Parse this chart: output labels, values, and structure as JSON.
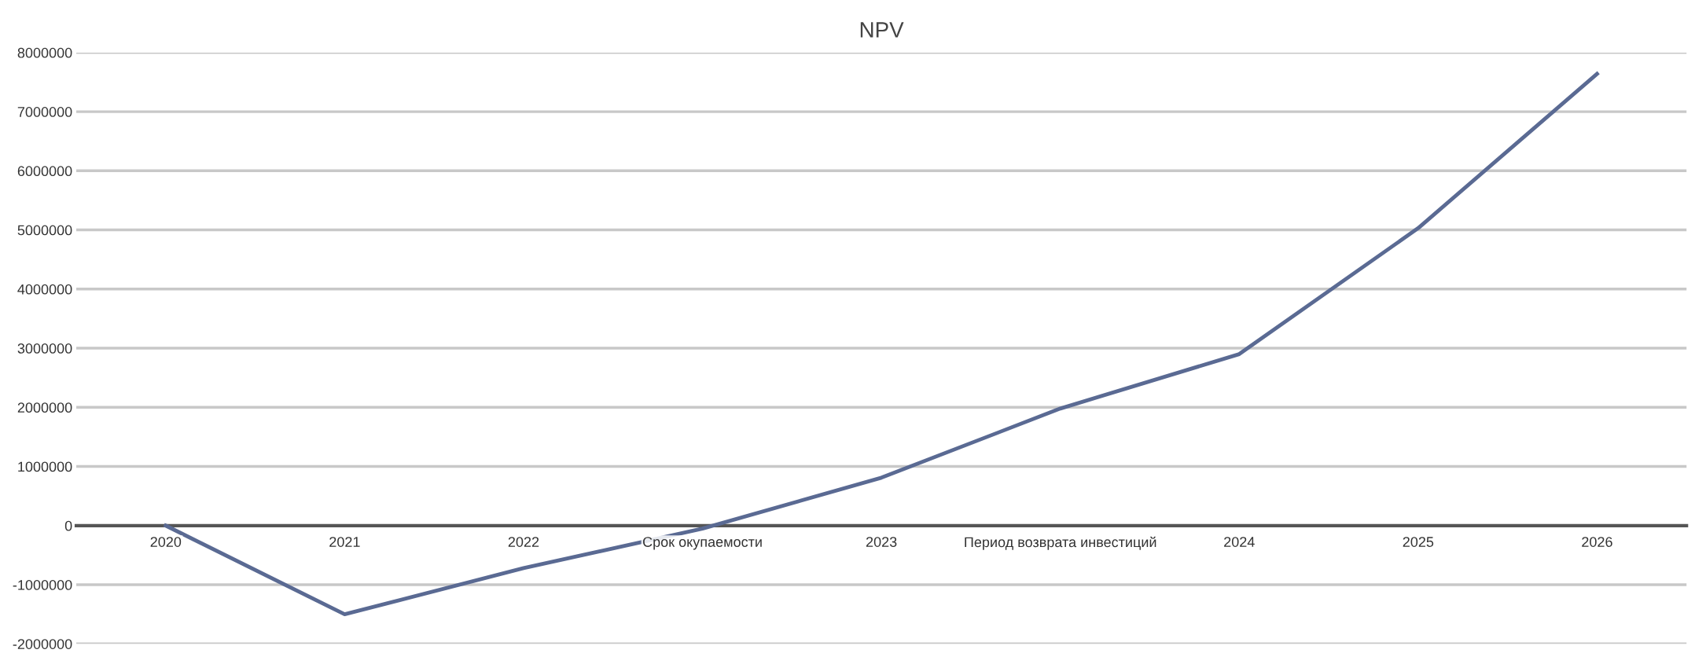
{
  "chart_data": {
    "type": "line",
    "title": "NPV",
    "categories": [
      "2020",
      "2021",
      "2022",
      "Срок окупаемости",
      "2023",
      "Период возврата инвестиций",
      "2024",
      "2025",
      "2026"
    ],
    "series": [
      {
        "color": "#5a6a93",
        "values": [
          0,
          -1500000,
          -720000,
          -50000,
          810000,
          1980000,
          2900000,
          5030000,
          7640000
        ]
      }
    ],
    "ylim": [
      -2000000,
      8000000
    ],
    "yticks": [
      -2000000,
      -1000000,
      0,
      1000000,
      2000000,
      3000000,
      4000000,
      5000000,
      6000000,
      7000000,
      8000000
    ],
    "grid": "y",
    "marker": "none",
    "line_style": "solid"
  }
}
